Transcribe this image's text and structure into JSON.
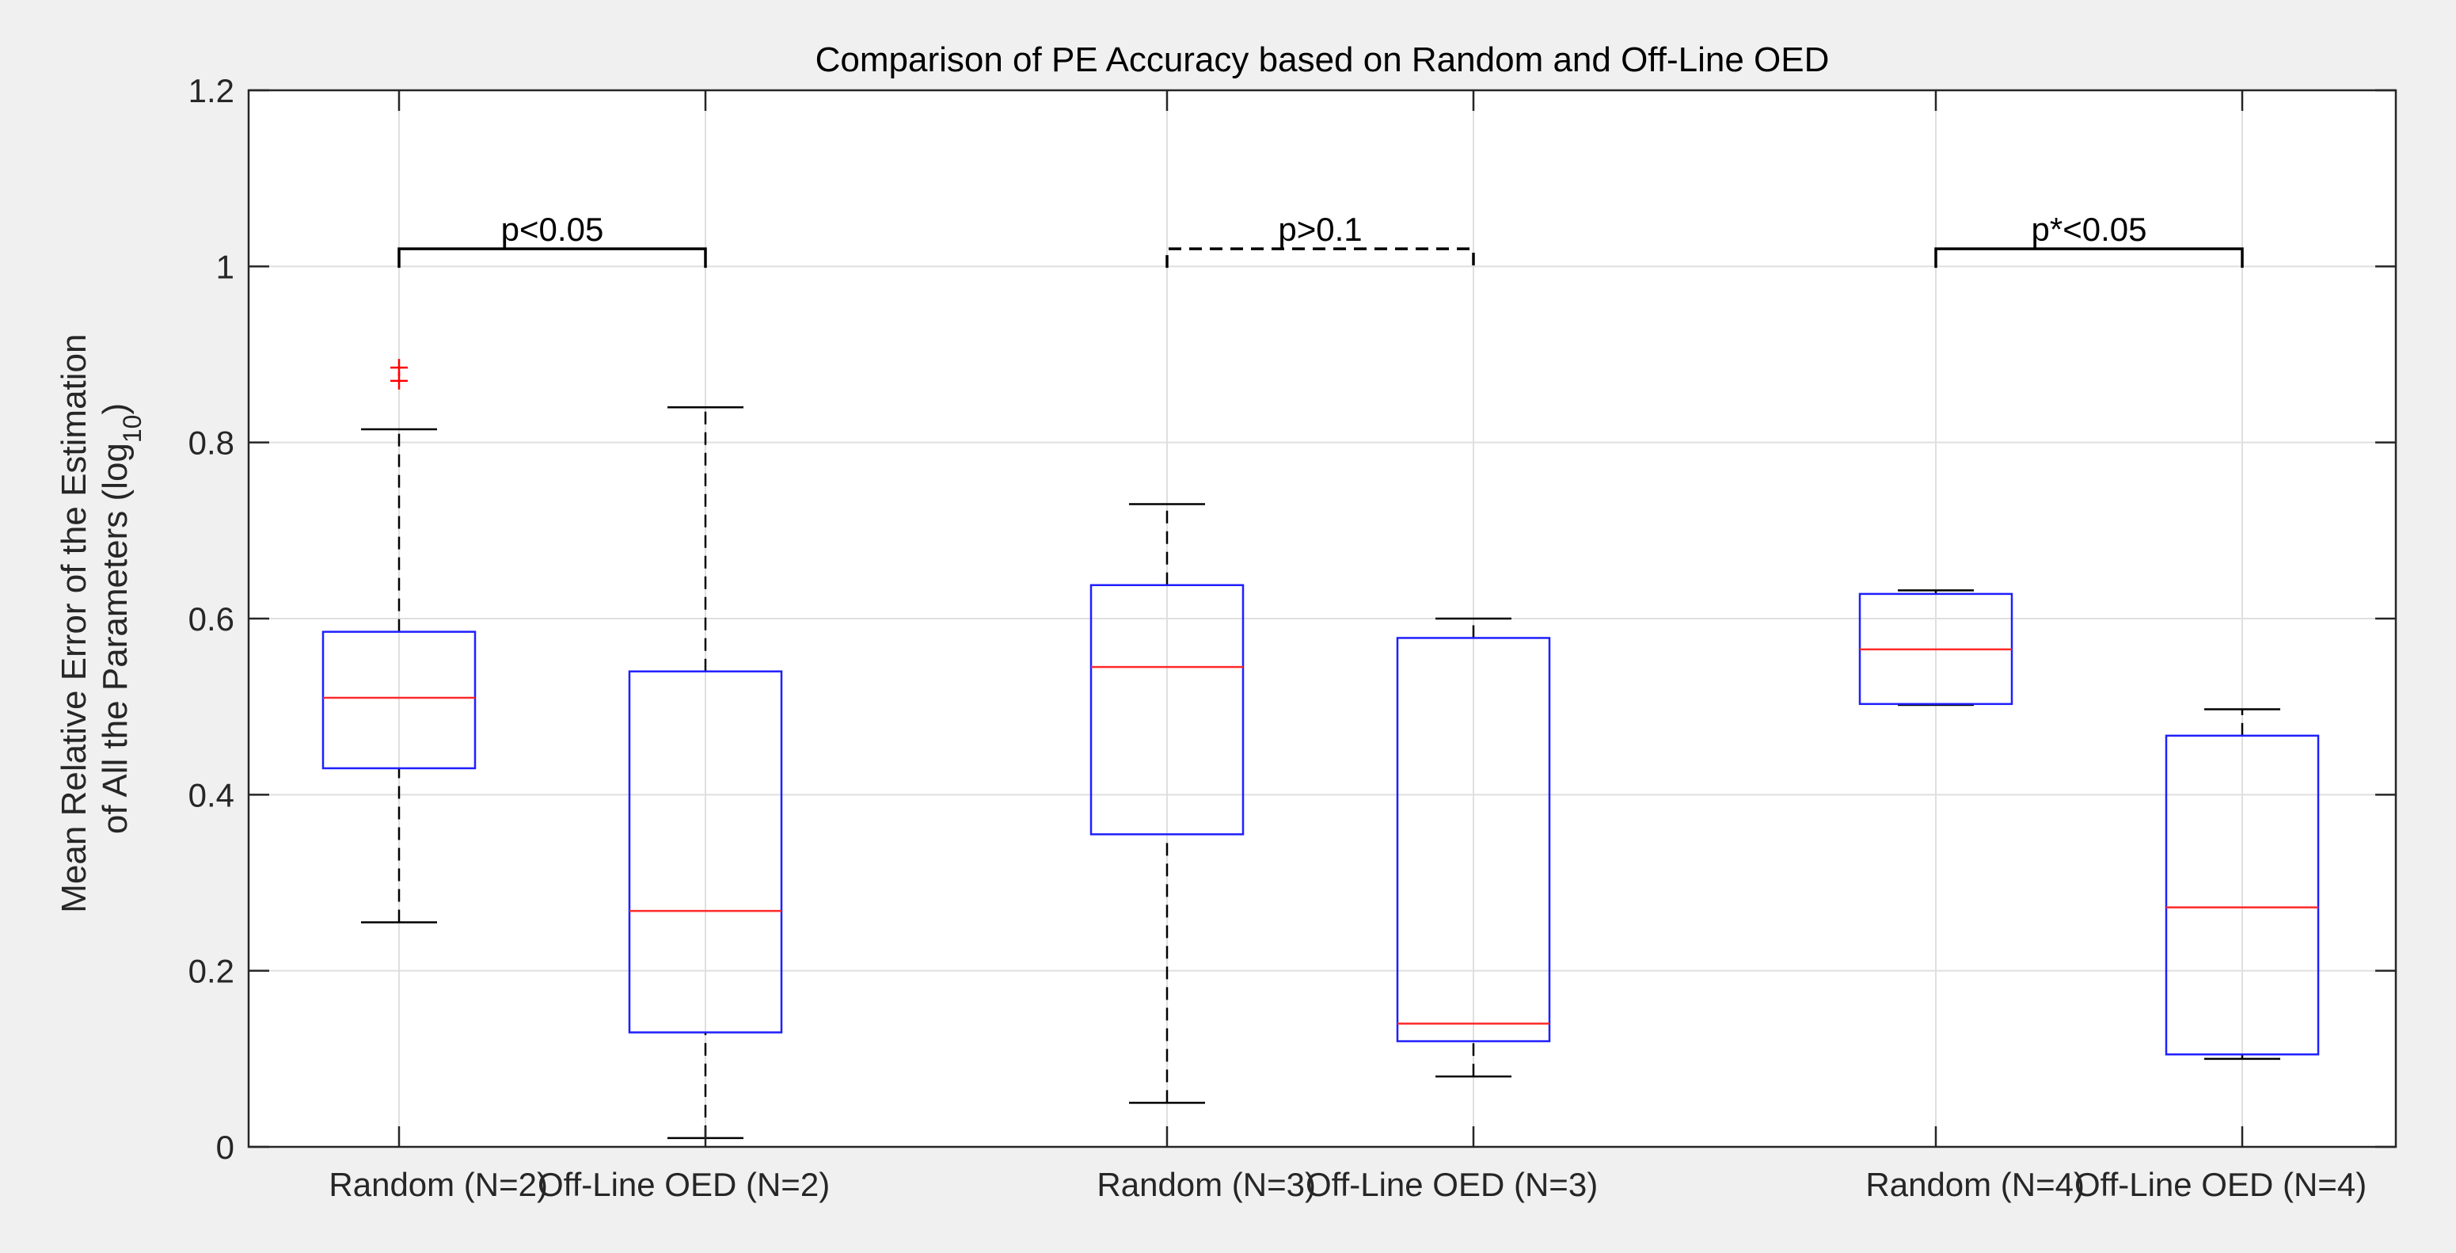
{
  "chart_data": {
    "type": "boxplot",
    "title": "Comparison of PE Accuracy based on Random and Off-Line OED",
    "ylabel_line1": "Mean Relative Error of the Estimation",
    "ylabel_line2_prefix": "of All the Parameters (log",
    "ylabel_line2_sub": "10",
    "ylabel_line2_suffix": ")",
    "ylim": [
      0,
      1.2
    ],
    "yticks": [
      {
        "value": 0,
        "label": "0"
      },
      {
        "value": 0.2,
        "label": "0.2"
      },
      {
        "value": 0.4,
        "label": "0.4"
      },
      {
        "value": 0.6,
        "label": "0.6"
      },
      {
        "value": 0.8,
        "label": "0.8"
      },
      {
        "value": 1.0,
        "label": "1"
      },
      {
        "value": 1.2,
        "label": "1.2"
      }
    ],
    "grid": true,
    "categories": [
      "Random (N=2)",
      "Off-Line OED (N=2)",
      "Random (N=3)",
      "Off-Line OED (N=3)",
      "Random (N=4)",
      "Off-Line OED (N=4)"
    ],
    "boxes": [
      {
        "category": "Random (N=2)",
        "whisker_low": 0.255,
        "q1": 0.43,
        "median": 0.51,
        "q3": 0.585,
        "whisker_high": 0.815,
        "outliers": [
          0.87,
          0.885
        ]
      },
      {
        "category": "Off-Line OED (N=2)",
        "whisker_low": 0.01,
        "q1": 0.13,
        "median": 0.268,
        "q3": 0.54,
        "whisker_high": 0.84,
        "outliers": []
      },
      {
        "category": "Random (N=3)",
        "whisker_low": 0.05,
        "q1": 0.355,
        "median": 0.545,
        "q3": 0.638,
        "whisker_high": 0.73,
        "outliers": []
      },
      {
        "category": "Off-Line OED (N=3)",
        "whisker_low": 0.08,
        "q1": 0.12,
        "median": 0.14,
        "q3": 0.578,
        "whisker_high": 0.6,
        "outliers": []
      },
      {
        "category": "Random (N=4)",
        "whisker_low": 0.502,
        "q1": 0.503,
        "median": 0.565,
        "q3": 0.628,
        "whisker_high": 0.632,
        "outliers": []
      },
      {
        "category": "Off-Line OED (N=4)",
        "whisker_low": 0.1,
        "q1": 0.105,
        "median": 0.272,
        "q3": 0.467,
        "whisker_high": 0.497,
        "outliers": []
      }
    ],
    "significance": [
      {
        "from": 0,
        "to": 1,
        "y": 1.02,
        "label": "p<0.05",
        "style": "solid"
      },
      {
        "from": 2,
        "to": 3,
        "y": 1.02,
        "label": "p>0.1",
        "style": "dashed"
      },
      {
        "from": 4,
        "to": 5,
        "y": 1.02,
        "label": "p*<0.05",
        "style": "solid"
      }
    ],
    "colors": {
      "box": "#1f1fff",
      "median": "#ff2a2a",
      "whisker": "#000000",
      "outlier": "#ff0000",
      "grid": "#dfdfdf",
      "axis": "#262626"
    }
  }
}
